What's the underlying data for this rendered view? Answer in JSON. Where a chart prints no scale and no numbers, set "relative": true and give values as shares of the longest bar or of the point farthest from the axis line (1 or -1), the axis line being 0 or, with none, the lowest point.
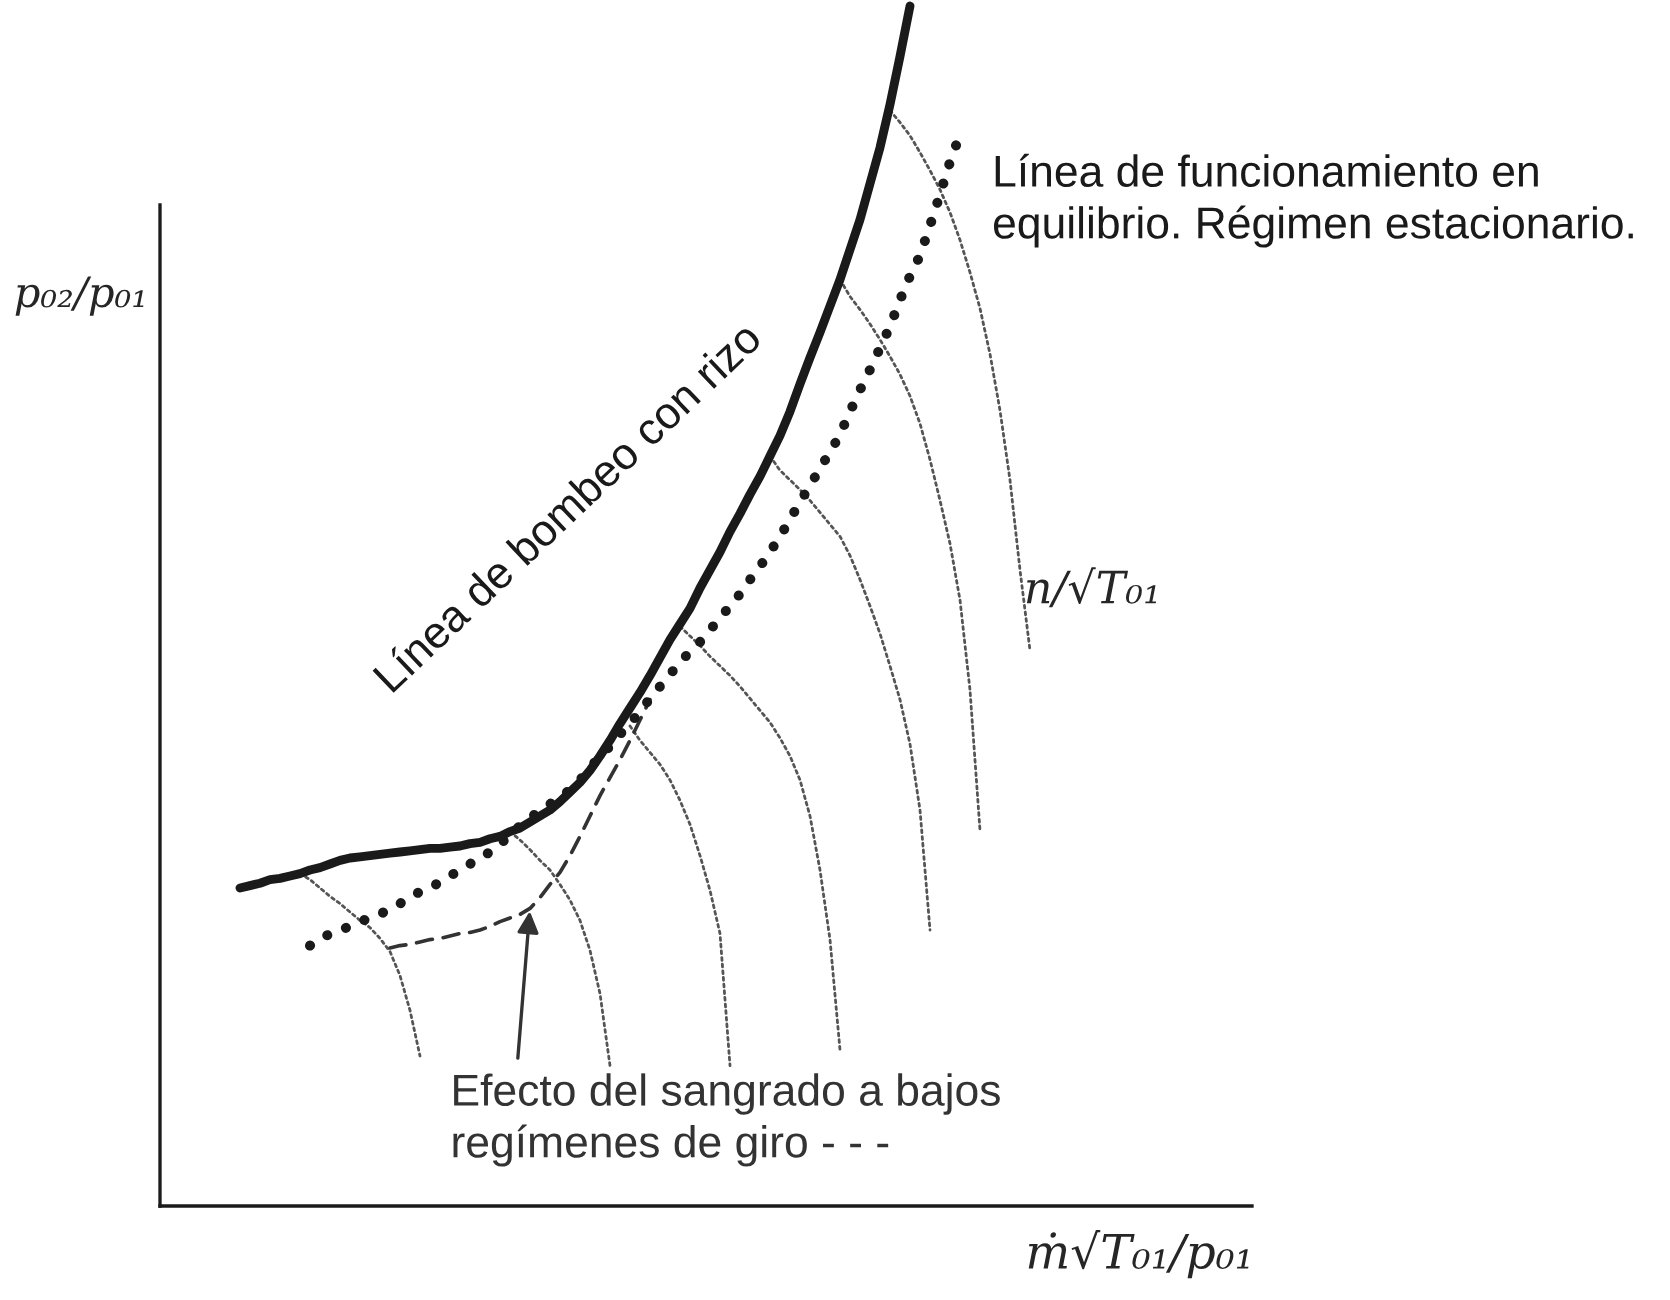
{
  "chart_data": {
    "type": "line",
    "relative": true,
    "xlabel": "ṁ√T₀₁/p₀₁",
    "ylabel": "p₀₂/p₀₁",
    "categories": [
      null,
      null,
      null,
      null,
      null,
      null,
      null,
      null,
      null,
      null,
      null,
      null,
      null,
      null,
      null,
      null,
      null,
      null,
      null,
      null,
      null,
      null,
      null,
      null,
      null,
      null,
      null,
      null,
      null,
      null,
      null,
      null,
      null,
      null,
      null,
      null,
      null,
      null,
      null,
      null,
      null,
      null,
      null,
      null,
      null,
      null,
      null,
      null,
      null,
      null,
      null,
      null,
      null,
      null,
      null,
      null,
      null,
      null,
      null,
      null,
      null,
      null,
      null,
      null,
      null,
      null,
      null,
      null,
      null,
      null,
      null,
      null,
      null,
      null,
      null,
      null,
      null,
      null,
      null,
      null,
      null
    ],
    "series": [
      {
        "color": "#555555",
        "line_style": "dotted",
        "values": [
          null,
          null,
          null,
          null,
          null,
          null,
          null,
          0.277,
          0.272,
          0.265,
          0.258,
          0.252,
          0.245,
          0.238,
          0.232,
          0.223,
          0.212,
          0.192,
          0.163,
          0.125,
          null,
          null,
          null,
          null,
          null,
          null,
          null,
          null,
          null,
          null,
          null,
          null,
          null,
          null,
          null,
          null,
          null,
          null,
          null,
          null,
          null,
          null,
          null,
          null,
          null,
          null,
          null,
          null,
          null,
          null,
          null,
          null,
          null,
          null,
          null,
          null,
          null,
          null,
          null,
          null,
          null,
          null,
          null,
          null,
          null,
          null,
          null,
          null,
          null,
          null,
          null,
          null,
          null,
          null,
          null,
          null,
          null,
          null,
          null,
          null,
          null
        ]
      },
      {
        "color": "#555555",
        "line_style": "dotted",
        "values": [
          null,
          null,
          null,
          null,
          null,
          null,
          null,
          null,
          null,
          null,
          null,
          null,
          null,
          null,
          null,
          null,
          null,
          null,
          null,
          null,
          null,
          null,
          null,
          null,
          null,
          null,
          null,
          null,
          0.312,
          0.305,
          0.297,
          0.288,
          0.28,
          0.268,
          0.255,
          0.238,
          0.213,
          0.177,
          0.117,
          null,
          null,
          null,
          null,
          null,
          null,
          null,
          null,
          null,
          null,
          null,
          null,
          null,
          null,
          null,
          null,
          null,
          null,
          null,
          null,
          null,
          null,
          null,
          null,
          null,
          null,
          null,
          null,
          null,
          null,
          null,
          null,
          null,
          null,
          null,
          null,
          null,
          null,
          null,
          null,
          null,
          null
        ]
      },
      {
        "color": "#555555",
        "line_style": "dotted",
        "values": [
          null,
          null,
          null,
          null,
          null,
          null,
          null,
          null,
          null,
          null,
          null,
          null,
          null,
          null,
          null,
          null,
          null,
          null,
          null,
          null,
          null,
          null,
          null,
          null,
          null,
          null,
          null,
          null,
          null,
          null,
          null,
          null,
          null,
          null,
          null,
          null,
          null,
          null,
          null,
          null,
          0.4,
          0.388,
          0.378,
          0.368,
          0.355,
          0.338,
          0.318,
          0.292,
          0.263,
          0.227,
          0.117,
          null,
          null,
          null,
          null,
          null,
          null,
          null,
          null,
          null,
          null,
          null,
          null,
          null,
          null,
          null,
          null,
          null,
          null,
          null,
          null,
          null,
          null,
          null,
          null,
          null,
          null,
          null,
          null,
          null,
          null
        ]
      },
      {
        "color": "#555555",
        "line_style": "dotted",
        "values": [
          null,
          null,
          null,
          null,
          null,
          null,
          null,
          null,
          null,
          null,
          null,
          null,
          null,
          null,
          null,
          null,
          null,
          null,
          null,
          null,
          null,
          null,
          null,
          null,
          null,
          null,
          null,
          null,
          null,
          null,
          null,
          null,
          null,
          null,
          null,
          null,
          null,
          null,
          null,
          null,
          null,
          null,
          null,
          null,
          null,
          0.483,
          0.475,
          0.467,
          0.458,
          0.45,
          0.442,
          0.433,
          0.423,
          0.413,
          0.403,
          0.39,
          0.375,
          0.355,
          0.325,
          0.28,
          0.222,
          0.13,
          null,
          null,
          null,
          null,
          null,
          null,
          null,
          null,
          null,
          null,
          null,
          null,
          null,
          null,
          null,
          null,
          null,
          null,
          null
        ]
      },
      {
        "color": "#555555",
        "line_style": "dotted",
        "values": [
          null,
          null,
          null,
          null,
          null,
          null,
          null,
          null,
          null,
          null,
          null,
          null,
          null,
          null,
          null,
          null,
          null,
          null,
          null,
          null,
          null,
          null,
          null,
          null,
          null,
          null,
          null,
          null,
          null,
          null,
          null,
          null,
          null,
          null,
          null,
          null,
          null,
          null,
          null,
          null,
          null,
          null,
          null,
          null,
          null,
          null,
          null,
          null,
          null,
          null,
          null,
          null,
          null,
          null,
          0.625,
          0.613,
          0.605,
          0.597,
          0.588,
          0.578,
          0.568,
          0.558,
          0.542,
          0.522,
          0.5,
          0.477,
          0.45,
          0.422,
          0.385,
          0.33,
          0.23,
          null,
          null,
          null,
          null,
          null,
          null,
          null,
          null,
          null,
          null
        ]
      },
      {
        "color": "#555555",
        "line_style": "dotted",
        "values": [
          null,
          null,
          null,
          null,
          null,
          null,
          null,
          null,
          null,
          null,
          null,
          null,
          null,
          null,
          null,
          null,
          null,
          null,
          null,
          null,
          null,
          null,
          null,
          null,
          null,
          null,
          null,
          null,
          null,
          null,
          null,
          null,
          null,
          null,
          null,
          null,
          null,
          null,
          null,
          null,
          null,
          null,
          null,
          null,
          null,
          null,
          null,
          null,
          null,
          null,
          null,
          null,
          null,
          null,
          null,
          null,
          null,
          null,
          null,
          null,
          null,
          0.772,
          0.758,
          0.747,
          0.735,
          0.722,
          0.708,
          0.693,
          0.675,
          0.652,
          0.622,
          0.588,
          0.552,
          0.505,
          0.43,
          0.313,
          null,
          null,
          null,
          null,
          null
        ]
      },
      {
        "color": "#555555",
        "line_style": "dotted",
        "values": [
          null,
          null,
          null,
          null,
          null,
          null,
          null,
          null,
          null,
          null,
          null,
          null,
          null,
          null,
          null,
          null,
          null,
          null,
          null,
          null,
          null,
          null,
          null,
          null,
          null,
          null,
          null,
          null,
          null,
          null,
          null,
          null,
          null,
          null,
          null,
          null,
          null,
          null,
          null,
          null,
          null,
          null,
          null,
          null,
          null,
          null,
          null,
          null,
          null,
          null,
          null,
          null,
          null,
          null,
          null,
          null,
          null,
          null,
          null,
          null,
          null,
          null,
          null,
          null,
          null,
          null,
          0.913,
          0.903,
          0.892,
          0.878,
          0.863,
          0.847,
          0.828,
          0.805,
          0.778,
          0.748,
          0.71,
          0.663,
          0.605,
          0.53,
          0.463
        ]
      },
      {
        "name": "Efecto del sangrado a bajos regímenes de giro - - -",
        "color": "#333333",
        "line_style": "dashed",
        "values": [
          null,
          null,
          null,
          null,
          null,
          null,
          null,
          null,
          null,
          null,
          null,
          null,
          null,
          null,
          null,
          null,
          0.215,
          0.217,
          0.218,
          0.22,
          0.222,
          0.223,
          0.225,
          0.227,
          0.228,
          0.23,
          0.233,
          0.237,
          0.24,
          0.243,
          0.248,
          0.257,
          0.268,
          0.278,
          0.292,
          0.308,
          0.325,
          0.342,
          0.357,
          0.372,
          0.388,
          0.405,
          0.422,
          null,
          null,
          null,
          null,
          null,
          null,
          null,
          null,
          null,
          null,
          null,
          null,
          null,
          null,
          null,
          null,
          null,
          null,
          null,
          null,
          null,
          null,
          null,
          null,
          null,
          null,
          null,
          null,
          null,
          null,
          null,
          null,
          null,
          null,
          null,
          null,
          null,
          null
        ]
      },
      {
        "name": "Línea de funcionamiento en equilibrio. Régimen estacionario.",
        "color": "#1a1a1a",
        "line_style": "dotted",
        "values": [
          null,
          null,
          null,
          null,
          null,
          null,
          null,
          null,
          0.217,
          0.222,
          0.227,
          0.23,
          0.233,
          0.237,
          0.24,
          0.243,
          0.248,
          0.252,
          0.257,
          0.262,
          0.265,
          0.27,
          0.275,
          0.28,
          0.285,
          0.29,
          0.295,
          0.302,
          0.308,
          0.317,
          0.323,
          0.33,
          0.335,
          0.34,
          0.347,
          0.355,
          0.365,
          0.375,
          0.383,
          0.393,
          0.402,
          0.412,
          0.423,
          0.433,
          0.443,
          0.453,
          0.462,
          0.47,
          0.48,
          0.49,
          0.5,
          0.51,
          0.522,
          0.533,
          0.545,
          0.558,
          0.572,
          0.587,
          0.6,
          0.615,
          0.628,
          0.643,
          0.662,
          0.68,
          0.697,
          0.715,
          0.733,
          0.755,
          0.775,
          0.792,
          0.817,
          0.843,
          0.87,
          0.893,
          null,
          null,
          null,
          null,
          null,
          null,
          null
        ]
      },
      {
        "name": "Línea de bombeo con rizo",
        "color": "#1a1a1a",
        "line_style": "solid",
        "values": [
          null,
          0.265,
          0.267,
          0.269,
          0.272,
          0.273,
          0.275,
          0.277,
          0.28,
          0.282,
          0.285,
          0.288,
          0.29,
          0.291,
          0.292,
          0.293,
          0.294,
          0.295,
          0.296,
          0.297,
          0.298,
          0.298,
          0.299,
          0.3,
          0.302,
          0.303,
          0.306,
          0.308,
          0.312,
          0.315,
          0.32,
          0.325,
          0.33,
          0.337,
          0.345,
          0.353,
          0.363,
          0.375,
          0.388,
          0.402,
          0.415,
          0.428,
          0.442,
          0.457,
          0.472,
          0.485,
          0.498,
          0.515,
          0.53,
          0.545,
          0.562,
          0.577,
          0.593,
          0.608,
          0.625,
          0.642,
          0.662,
          0.685,
          0.707,
          0.728,
          0.75,
          0.772,
          0.797,
          0.822,
          0.852,
          0.882,
          0.918,
          0.958,
          1.0,
          null,
          null,
          null,
          null,
          null,
          null,
          null,
          null,
          null,
          null,
          null,
          null
        ]
      }
    ],
    "annotations": [
      "n/√T₀₁"
    ]
  }
}
